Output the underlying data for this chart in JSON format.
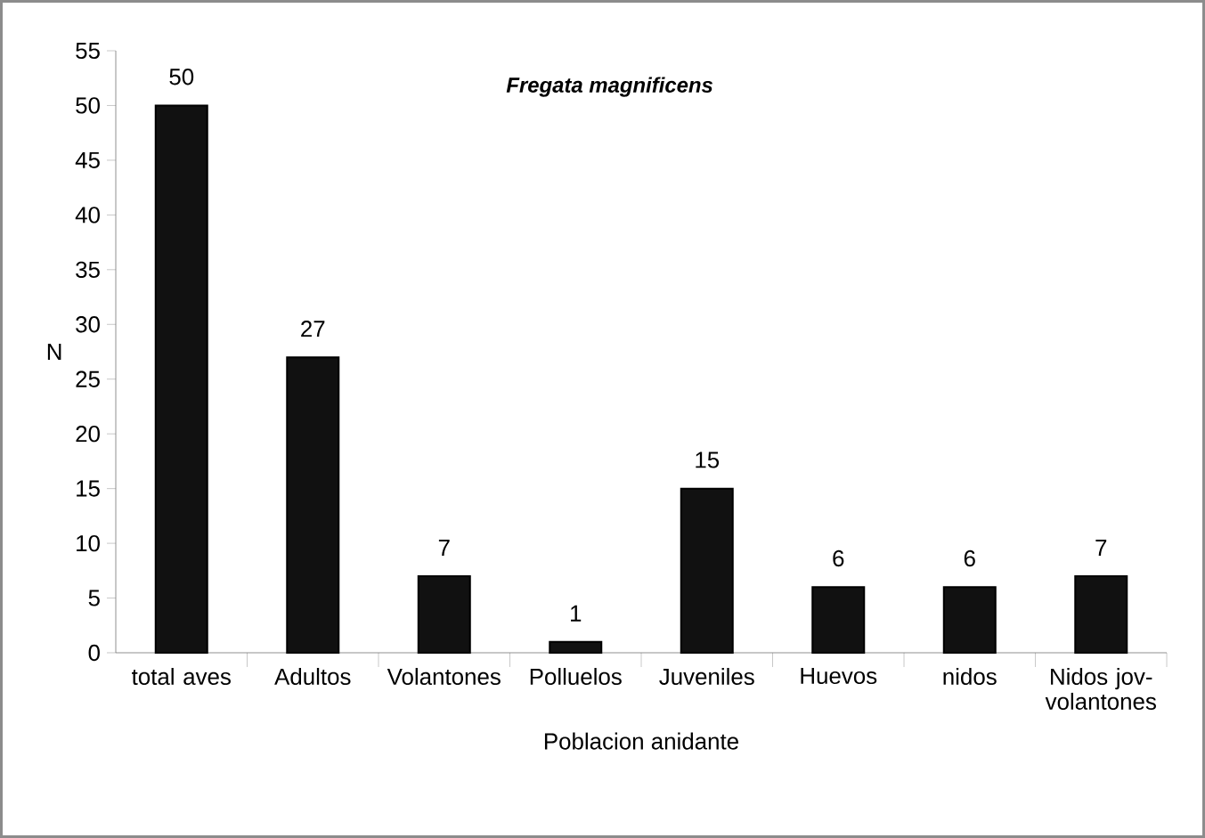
{
  "chart_data": {
    "type": "bar",
    "title": "Fregata magnificens",
    "xlabel": "Poblacion anidante",
    "ylabel": "N",
    "categories": [
      "total aves",
      "Adultos",
      "Volantones",
      "Polluelos",
      "Juveniles",
      "Huevos",
      "nidos",
      "Nidos jov-volantones"
    ],
    "values": [
      50,
      27,
      7,
      1,
      15,
      6,
      6,
      7
    ],
    "color": "#111111",
    "data_labels": true,
    "ylim": [
      0,
      55
    ],
    "yticks": [
      0,
      5,
      10,
      15,
      20,
      25,
      30,
      35,
      40,
      45,
      50,
      55
    ]
  }
}
